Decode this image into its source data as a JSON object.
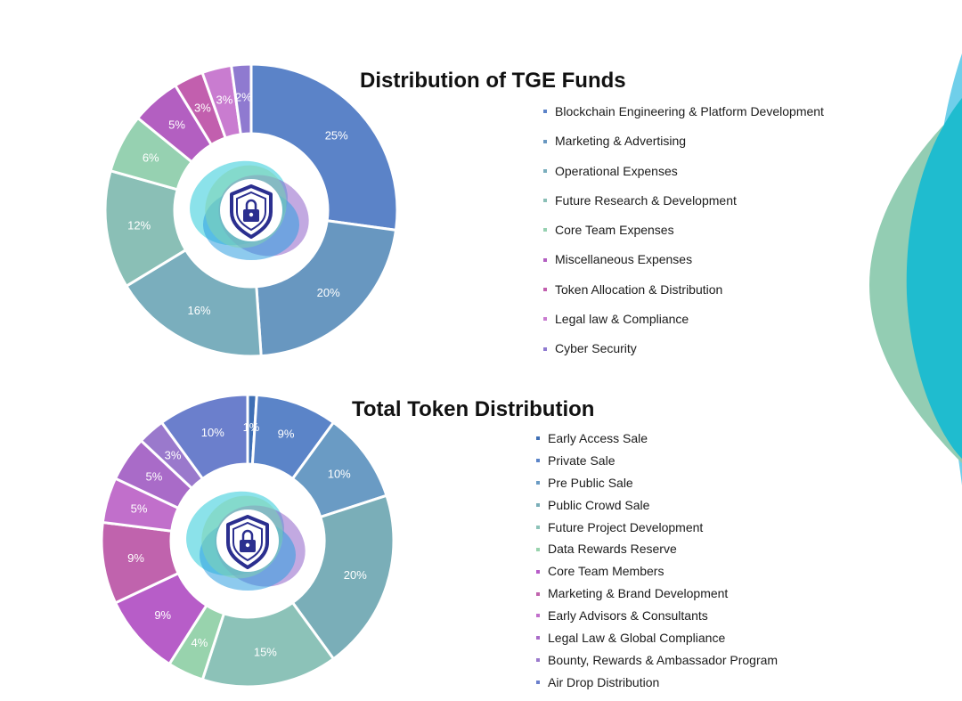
{
  "charts": {
    "tge": {
      "title": "Distribution of TGE Funds",
      "center_icon": "shield-lock-icon"
    },
    "token": {
      "title": "Total Token Distribution",
      "center_icon": "shield-lock-icon"
    }
  },
  "chart_data": [
    {
      "type": "pie",
      "title": "Distribution of TGE Funds",
      "style": "donut",
      "legend_placement": "right",
      "categories": [
        "Blockchain Engineering & Platform Development",
        "Marketing & Advertising",
        "Operational Expenses",
        "Future Research & Development",
        "Core Team Expenses",
        "Miscellaneous Expenses",
        "Token Allocation & Distribution",
        "Legal law & Compliance",
        "Cyber Security"
      ],
      "values": [
        25,
        20,
        16,
        12,
        6,
        5,
        3,
        3,
        2
      ],
      "labels": [
        "25%",
        "20%",
        "16%",
        "12%",
        "6%",
        "5%",
        "3%",
        "3%",
        "2%"
      ],
      "colors": [
        "#5b83c8",
        "#6897c0",
        "#7aaebd",
        "#8abfb6",
        "#96d1b1",
        "#b35fc1",
        "#c25fae",
        "#c97cd0",
        "#8f7ad0"
      ]
    },
    {
      "type": "pie",
      "title": "Total Token Distribution",
      "style": "donut",
      "legend_placement": "right",
      "categories": [
        "Early Access Sale",
        "Private Sale",
        "Pre Public Sale",
        "Public Crowd Sale",
        "Future Project Development",
        "Data Rewards Reserve",
        "Core Team Members",
        "Marketing & Brand Development",
        "Early Advisors & Consultants",
        "Legal Law & Global Compliance",
        "Bounty, Rewards & Ambassador Program",
        "Air Drop Distribution"
      ],
      "values": [
        1,
        9,
        10,
        20,
        15,
        4,
        9,
        9,
        5,
        5,
        3,
        10
      ],
      "labels": [
        "1%",
        "9%",
        "10%",
        "20%",
        "15%",
        "4%",
        "9%",
        "9%",
        "5%",
        "5%",
        "3%",
        "10%"
      ],
      "colors": [
        "#3f6fb5",
        "#5b84c8",
        "#6a9bc4",
        "#7aaeb8",
        "#8cc2b8",
        "#98d3ad",
        "#b75dc8",
        "#c063ad",
        "#c16fcb",
        "#a96bc8",
        "#9a79cc",
        "#6b7fcc"
      ]
    }
  ]
}
